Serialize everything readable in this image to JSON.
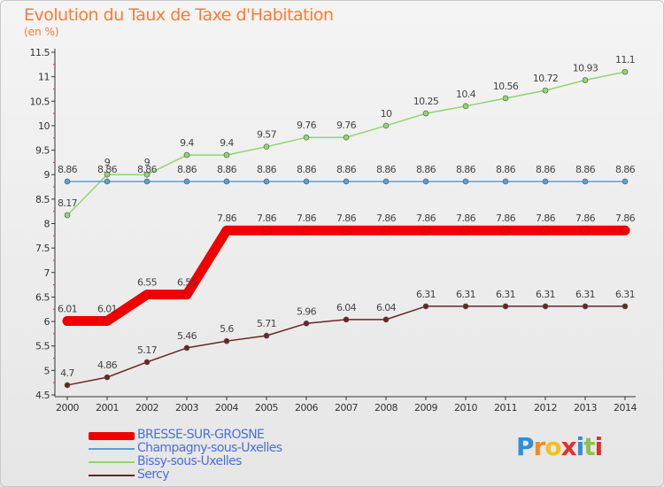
{
  "title": "Evolution du Taux de Taxe d'Habitation",
  "unit_label": "(en %)",
  "logo_text": "Proxiti",
  "logo_colors": [
    "#2e8fd8",
    "#f28a22",
    "#f2c21b",
    "#e0312f",
    "#2e8fd8",
    "#8bc34a",
    "#e0312f"
  ],
  "chart_data": {
    "type": "line",
    "title": "Evolution du Taux de Taxe d'Habitation",
    "ylabel": "(en %)",
    "xlabel": "",
    "ylim": [
      4.5,
      11.5
    ],
    "yticks": [
      "4.5",
      "5",
      "5.5",
      "6",
      "6.5",
      "7",
      "7.5",
      "8",
      "8.5",
      "9",
      "9.5",
      "10",
      "10.5",
      "11",
      "11.5"
    ],
    "x": [
      "2000",
      "2001",
      "2002",
      "2003",
      "2004",
      "2005",
      "2006",
      "2007",
      "2008",
      "2009",
      "2010",
      "2011",
      "2012",
      "2013",
      "2014"
    ],
    "grid": false,
    "legend_position": "bottom-left",
    "series": [
      {
        "name": "BRESSE-SUR-GROSNE",
        "color": "#f00000",
        "values": [
          6.01,
          6.01,
          6.55,
          6.55,
          7.86,
          7.86,
          7.86,
          7.86,
          7.86,
          7.86,
          7.86,
          7.86,
          7.86,
          7.86,
          7.86
        ],
        "labels": [
          "6.01",
          "6.01",
          "6.55",
          "6.55",
          "7.86",
          "7.86",
          "7.86",
          "7.86",
          "7.86",
          "7.86",
          "7.86",
          "7.86",
          "7.86",
          "7.86",
          "7.86"
        ]
      },
      {
        "name": "Champagny-sous-Uxelles",
        "color": "#5b9fd6",
        "values": [
          8.86,
          8.86,
          8.86,
          8.86,
          8.86,
          8.86,
          8.86,
          8.86,
          8.86,
          8.86,
          8.86,
          8.86,
          8.86,
          8.86,
          8.86
        ],
        "labels": [
          "8.86",
          "8.86",
          "8.86",
          "8.86",
          "8.86",
          "8.86",
          "8.86",
          "8.86",
          "8.86",
          "8.86",
          "8.86",
          "8.86",
          "8.86",
          "8.86",
          "8.86"
        ]
      },
      {
        "name": "Bissy-sous-Uxelles",
        "color": "#8fd66b",
        "values": [
          8.17,
          9,
          9,
          9.4,
          9.4,
          9.57,
          9.76,
          9.76,
          10,
          10.25,
          10.4,
          10.56,
          10.72,
          10.93,
          11.1
        ],
        "labels": [
          "8.17",
          "9",
          "9",
          "9.4",
          "9.4",
          "9.57",
          "9.76",
          "9.76",
          "10",
          "10.25",
          "10.4",
          "10.56",
          "10.72",
          "10.93",
          "11.1"
        ]
      },
      {
        "name": "Sercy",
        "color": "#6b2424",
        "values": [
          4.7,
          4.86,
          5.17,
          5.46,
          5.6,
          5.71,
          5.96,
          6.04,
          6.04,
          6.31,
          6.31,
          6.31,
          6.31,
          6.31,
          6.31
        ],
        "labels": [
          "4.7",
          "4.86",
          "5.17",
          "5.46",
          "5.6",
          "5.71",
          "5.96",
          "6.04",
          "6.04",
          "6.31",
          "6.31",
          "6.31",
          "6.31",
          "6.31",
          "6.31"
        ]
      }
    ]
  }
}
